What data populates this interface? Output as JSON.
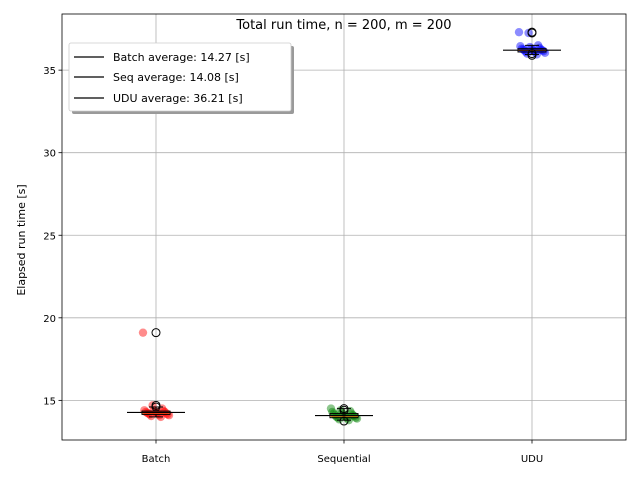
{
  "chart_data": {
    "type": "box-strip",
    "title": "Total run time, n = 200, m = 200",
    "ylabel": "Elapsed run time [s]",
    "xlabel": "",
    "categories": [
      "Batch",
      "Sequential",
      "UDU"
    ],
    "ylim": [
      12.6,
      38.4
    ],
    "yticks": [
      15,
      20,
      25,
      30,
      35
    ],
    "grid": true,
    "legend_position": "upper-left",
    "legend": [
      "Batch average: 14.27 [s]",
      "Seq average: 14.08 [s]",
      "UDU average: 36.21 [s]"
    ],
    "series": [
      {
        "category": "Batch",
        "color": "#ff0000",
        "average": 14.27,
        "median": 14.25,
        "q1": 14.15,
        "q3": 14.35,
        "whisker_low": 14.0,
        "whisker_high": 14.6,
        "outliers": [
          19.1,
          14.7,
          14.6
        ],
        "points": [
          19.1,
          14.7,
          14.5,
          14.4,
          14.4,
          14.35,
          14.3,
          14.3,
          14.3,
          14.25,
          14.25,
          14.2,
          14.2,
          14.2,
          14.15,
          14.15,
          14.1,
          14.1,
          14.05,
          14.0
        ]
      },
      {
        "category": "Sequential",
        "color": "#008000",
        "average": 14.08,
        "median": 14.05,
        "q1": 13.95,
        "q3": 14.2,
        "whisker_low": 13.8,
        "whisker_high": 14.5,
        "outliers": [
          14.5,
          14.4,
          13.75
        ],
        "points": [
          14.5,
          14.4,
          14.35,
          14.3,
          14.25,
          14.2,
          14.2,
          14.15,
          14.1,
          14.1,
          14.05,
          14.05,
          14.0,
          14.0,
          13.95,
          13.95,
          13.9,
          13.9,
          13.85,
          13.8
        ]
      },
      {
        "category": "UDU",
        "color": "#0000ff",
        "average": 36.21,
        "median": 36.2,
        "q1": 36.1,
        "q3": 36.3,
        "whisker_low": 35.95,
        "whisker_high": 36.5,
        "outliers": [
          37.3,
          37.25,
          36.0,
          35.9
        ],
        "points": [
          37.3,
          37.25,
          36.5,
          36.45,
          36.4,
          36.35,
          36.3,
          36.3,
          36.25,
          36.25,
          36.2,
          36.2,
          36.2,
          36.15,
          36.15,
          36.1,
          36.1,
          36.05,
          36.0,
          35.95
        ]
      }
    ]
  }
}
